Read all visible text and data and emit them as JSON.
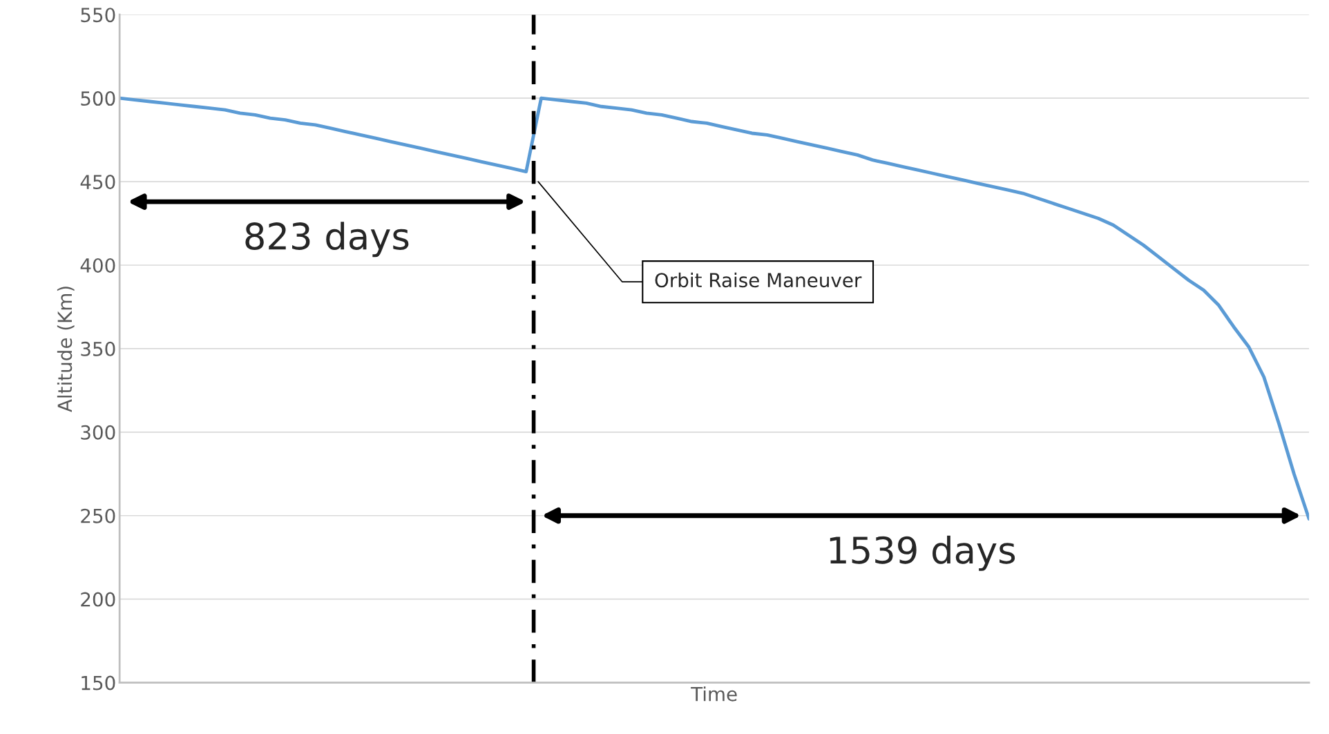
{
  "chart_data": {
    "type": "line",
    "xlabel": "Time",
    "ylabel": "Altitude (Km)",
    "tick_labels": "y",
    "grid": "y",
    "legend": false,
    "ylim": [
      150,
      550
    ],
    "yticks": [
      150,
      200,
      250,
      300,
      350,
      400,
      450,
      500,
      550
    ],
    "categories": [
      null,
      null,
      null,
      null,
      null,
      null,
      null,
      null,
      null,
      null,
      null,
      null,
      null,
      null,
      null,
      null,
      null,
      null,
      null,
      null,
      null,
      null,
      null,
      null,
      null,
      null,
      null,
      null,
      null,
      null,
      null,
      null,
      null,
      null,
      null,
      null,
      null,
      null,
      null,
      null,
      null,
      null,
      null,
      null,
      null,
      null,
      null,
      null,
      null,
      null,
      null,
      null,
      null,
      null,
      null,
      null,
      null,
      null,
      null,
      null,
      null,
      null,
      null,
      null,
      null,
      null,
      null,
      null,
      null,
      null,
      null,
      null,
      null,
      null,
      null,
      null,
      null,
      null,
      null,
      null
    ],
    "series": [
      {
        "color": "#5b9bd5",
        "values": [
          500,
          499,
          498,
          497,
          496,
          495,
          494,
          493,
          491,
          490,
          488,
          487,
          485,
          484,
          482,
          480,
          478,
          476,
          474,
          472,
          470,
          468,
          466,
          464,
          462,
          460,
          458,
          456,
          500,
          499,
          498,
          497,
          495,
          494,
          493,
          491,
          490,
          488,
          486,
          485,
          483,
          481,
          479,
          478,
          476,
          474,
          472,
          470,
          468,
          466,
          463,
          461,
          459,
          457,
          455,
          453,
          451,
          449,
          447,
          445,
          443,
          440,
          437,
          434,
          431,
          428,
          424,
          418,
          412,
          405,
          398,
          391,
          385,
          376,
          363,
          351,
          333,
          305,
          275,
          248
        ]
      }
    ],
    "annotations": [
      "823 days",
      "1539 days",
      "Orbit Raise Maneuver"
    ]
  }
}
